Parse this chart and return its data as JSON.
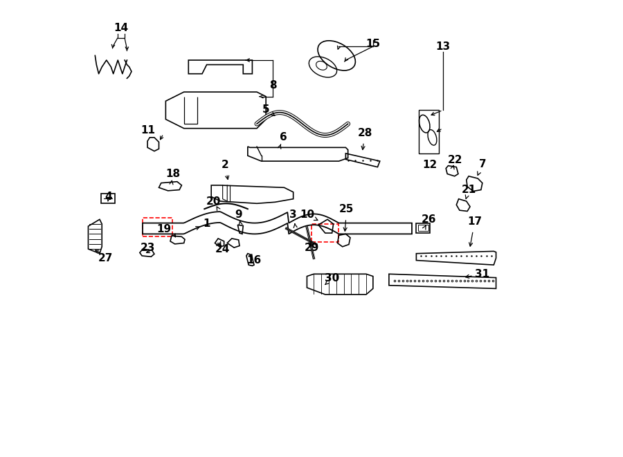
{
  "bg_color": "#ffffff",
  "line_color": "#000000",
  "red_dashed_color": "#ff0000",
  "figsize": [
    9.0,
    6.61
  ],
  "dpi": 100
}
